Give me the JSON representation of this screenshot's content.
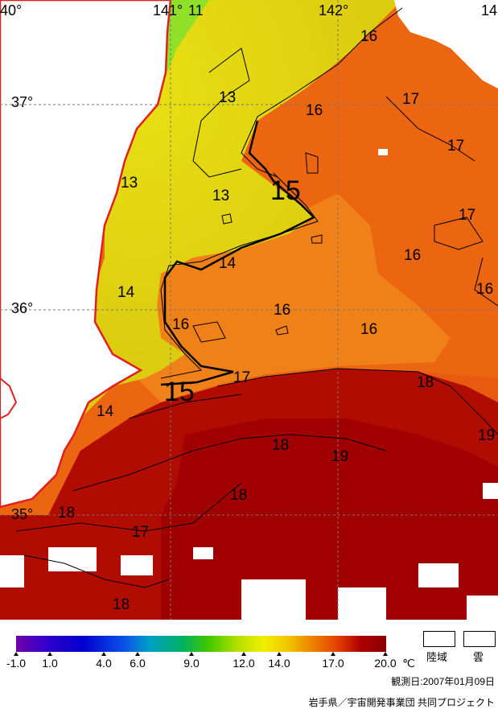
{
  "map": {
    "longitude_labels": [
      "40°",
      "141°",
      "11",
      "142°",
      "14"
    ],
    "latitude_labels": [
      "37°",
      "36°",
      "35°"
    ],
    "contour_labels": [
      "16",
      "13",
      "16",
      "17",
      "17",
      "13",
      "13",
      "15",
      "17",
      "16",
      "14",
      "14",
      "16",
      "16",
      "16",
      "16",
      "15",
      "17",
      "18",
      "14",
      "19",
      "18",
      "19",
      "18",
      "18",
      "17",
      "18"
    ]
  },
  "legend": {
    "ticks": [
      "-1.0",
      "1.0",
      "4.0",
      "6.0",
      "9.0",
      "12.0",
      "14.0",
      "17.0",
      "20.0"
    ],
    "unit": "℃",
    "land_label": "陸域",
    "cloud_label": "雲",
    "observation_date": "観測日:2007年01月09日",
    "credit": "岩手県／宇宙開発事業団 共同プロジェクト"
  },
  "colors": {
    "warmest": "#a80000",
    "warm": "#e84a0c",
    "mid": "#f08a18",
    "cool": "#e8e010",
    "cold": "#b8e020",
    "coast": "#e02020",
    "land": "#ffffff",
    "cloud": "#ffffff"
  }
}
